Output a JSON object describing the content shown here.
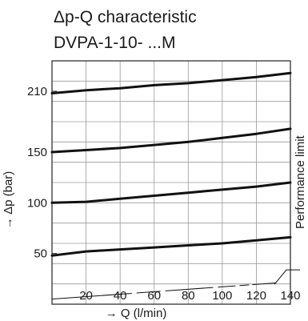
{
  "chart_data": {
    "type": "line",
    "title": "Δp-Q characteristic",
    "subtitle": "DVPA-1-10- ...M",
    "xlabel": "→ Q (l/min)",
    "ylabel": "→ Δp (bar)",
    "xlim": [
      0,
      140
    ],
    "ylim": [
      0,
      240
    ],
    "grid": true,
    "x_ticks": [
      "20",
      "40",
      "60",
      "80",
      "100",
      "120",
      "140"
    ],
    "y_ticks": [
      "50",
      "100",
      "150",
      "210"
    ],
    "x": [
      0,
      20,
      40,
      60,
      80,
      100,
      120,
      140
    ],
    "series": [
      {
        "values": [
          48,
          52,
          54,
          56,
          58,
          60,
          63,
          66
        ]
      },
      {
        "values": [
          100,
          101,
          104,
          107,
          110,
          113,
          116,
          120
        ]
      },
      {
        "values": [
          150,
          152,
          154,
          157,
          160,
          164,
          168,
          173
        ]
      },
      {
        "values": [
          208,
          211,
          213,
          216,
          218,
          221,
          224,
          228
        ]
      }
    ],
    "limit_line": {
      "label": "Performance limit",
      "x": [
        0,
        140
      ],
      "values": [
        5,
        22
      ]
    }
  }
}
